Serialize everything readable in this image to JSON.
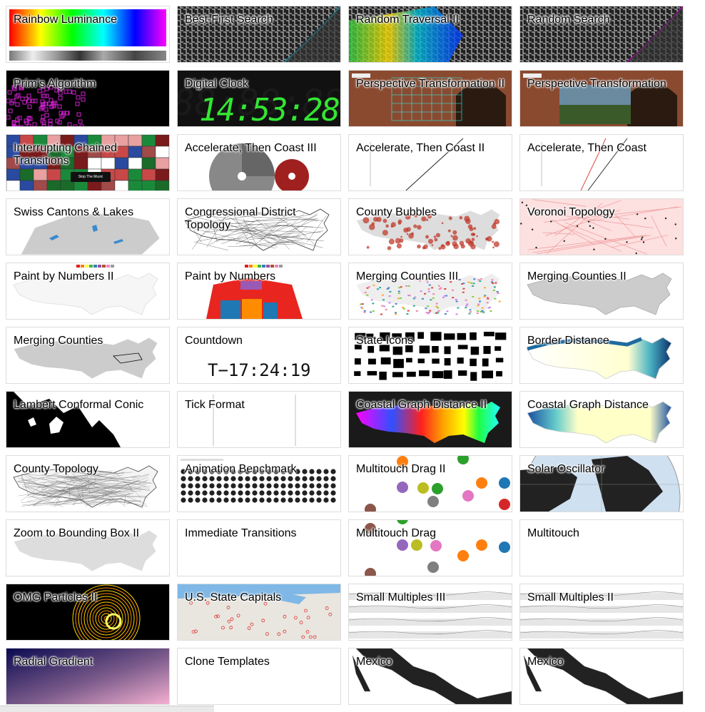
{
  "gallery": {
    "tiles": [
      {
        "title": "Rainbow Luminance",
        "thumb": "rainbow-luminance"
      },
      {
        "title": "Best-First Search",
        "thumb": "maze-cyan"
      },
      {
        "title": "Random Traversal II",
        "thumb": "maze-rainbow"
      },
      {
        "title": "Random Search",
        "thumb": "maze-magenta"
      },
      {
        "title": "Prim’s Algorithm",
        "thumb": "prim-maze"
      },
      {
        "title": "Digital Clock",
        "thumb": "digital-clock",
        "clock_text": "14:53:28"
      },
      {
        "title": "Perspective Transformation II",
        "thumb": "arch-grid"
      },
      {
        "title": "Perspective Transformation",
        "thumb": "arch-forest"
      },
      {
        "title": "Interrupting Chained Transitions",
        "thumb": "color-grid",
        "button_text": "Stop The Music"
      },
      {
        "title": "Accelerate, Then Coast III",
        "thumb": "gears"
      },
      {
        "title": "Accelerate, Then Coast II",
        "thumb": "coast-line"
      },
      {
        "title": "Accelerate, Then Coast",
        "thumb": "coast-lines"
      },
      {
        "title": "Swiss Cantons & Lakes",
        "thumb": "swiss-map"
      },
      {
        "title": "Congressional District Topology",
        "thumb": "us-mesh"
      },
      {
        "title": "County Bubbles",
        "thumb": "us-bubbles"
      },
      {
        "title": "Voronoi Topology",
        "thumb": "voronoi-pink"
      },
      {
        "title": "Paint by Numbers II",
        "thumb": "us-faint"
      },
      {
        "title": "Paint by Numbers",
        "thumb": "paint-blocks"
      },
      {
        "title": "Merging Counties III",
        "thumb": "us-colorful"
      },
      {
        "title": "Merging Counties II",
        "thumb": "us-gray"
      },
      {
        "title": "Merging Counties",
        "thumb": "us-gray-outline"
      },
      {
        "title": "Countdown",
        "thumb": "countdown",
        "countdown_text": "T−17:24:19"
      },
      {
        "title": "State Icons",
        "thumb": "state-icons"
      },
      {
        "title": "Border Distance",
        "thumb": "border-distance"
      },
      {
        "title": "Lambert Conformal Conic",
        "thumb": "lambert-conic"
      },
      {
        "title": "Tick Format",
        "thumb": "tick-format"
      },
      {
        "title": "Coastal Graph Distance II",
        "thumb": "coastal-rainbow"
      },
      {
        "title": "Coastal Graph Distance",
        "thumb": "coastal-yellow"
      },
      {
        "title": "County Topology",
        "thumb": "county-topology"
      },
      {
        "title": "Animation Benchmark",
        "thumb": "dots-benchmark"
      },
      {
        "title": "Multitouch Drag II",
        "thumb": "color-dots"
      },
      {
        "title": "Solar Oscillator",
        "thumb": "globe"
      },
      {
        "title": "Zoom to Bounding Box II",
        "thumb": "us-gray-light"
      },
      {
        "title": "Immediate Transitions",
        "thumb": "blank"
      },
      {
        "title": "Multitouch Drag",
        "thumb": "color-dots-2"
      },
      {
        "title": "Multitouch",
        "thumb": "blank"
      },
      {
        "title": "OMG Particles II",
        "thumb": "particles"
      },
      {
        "title": "U.S. State Capitals",
        "thumb": "capitals-map"
      },
      {
        "title": "Small Multiples III",
        "thumb": "small-multiples"
      },
      {
        "title": "Small Multiples II",
        "thumb": "small-multiples"
      },
      {
        "title": "Radial Gradient",
        "thumb": "radial-gradient"
      },
      {
        "title": "Clone Templates",
        "thumb": "clone-table"
      },
      {
        "title": "Mexico",
        "thumb": "mexico"
      },
      {
        "title": "Mexico",
        "thumb": "mexico"
      }
    ]
  }
}
